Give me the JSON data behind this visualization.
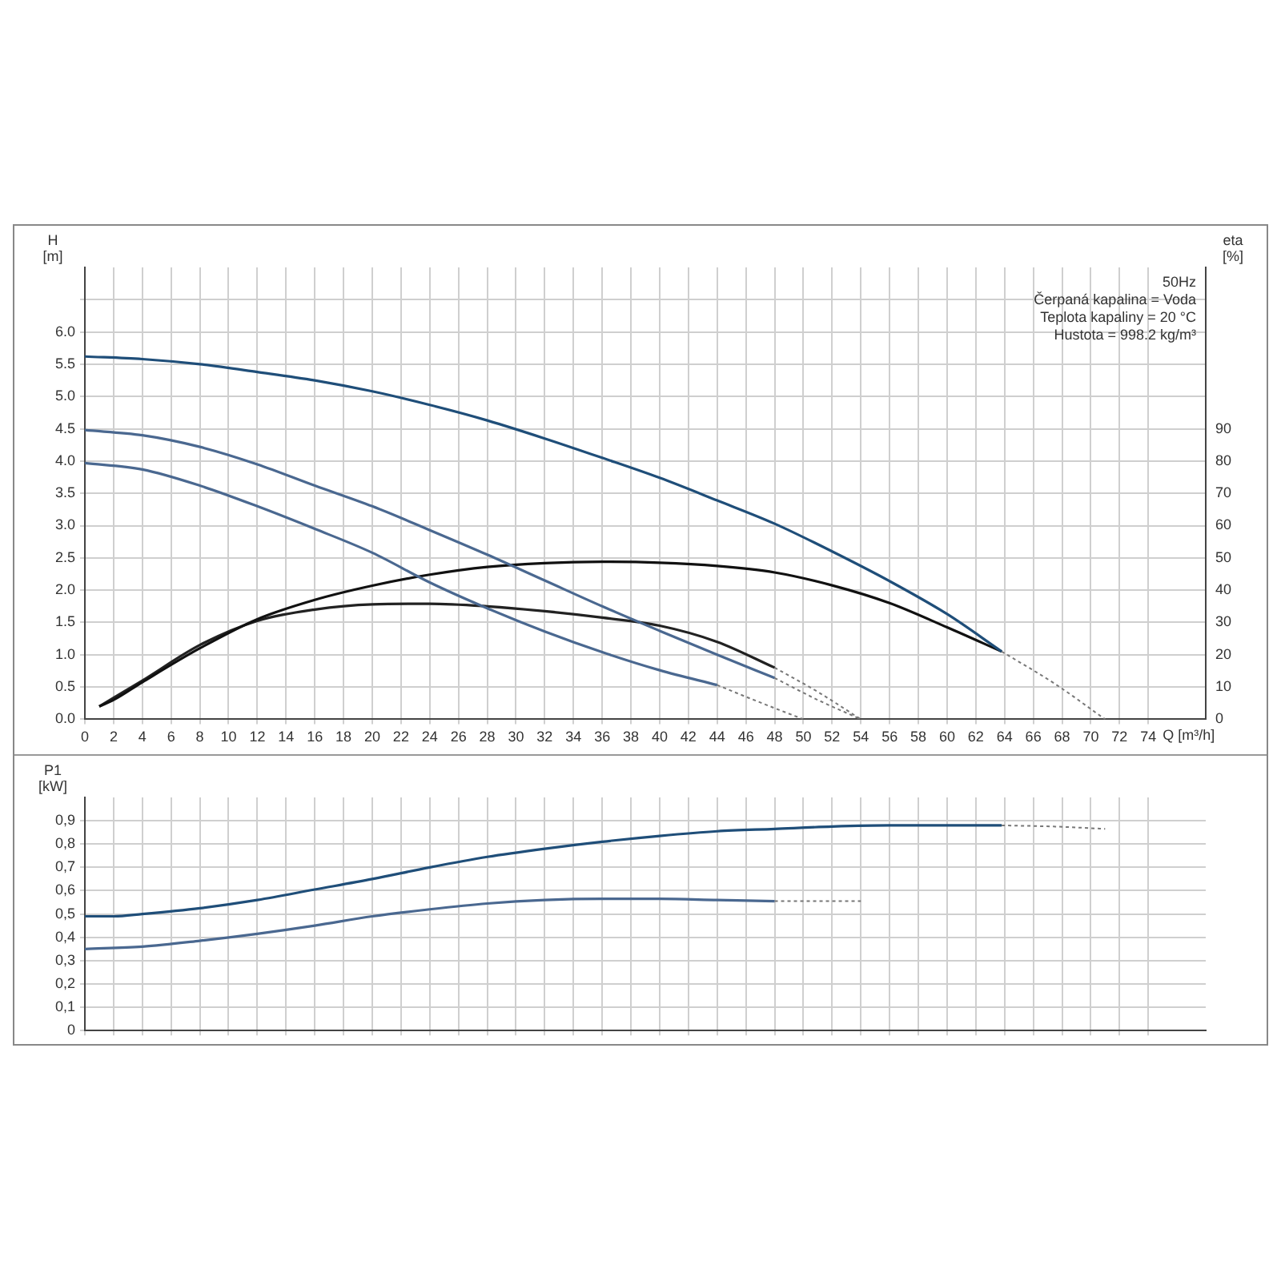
{
  "chart_data": [
    {
      "type": "line",
      "xlabel": "Q [m³/h]",
      "ylabel": "H [m]",
      "y2label": "eta [%]",
      "annotations": [
        "50Hz",
        "Čerpaná kapalina = Voda",
        "Teplota kapaliny = 20 °C",
        "Hustota = 998.2 kg/m³"
      ],
      "grid": true,
      "marker": "none",
      "xlim": [
        0,
        78
      ],
      "xticks": [
        0,
        2,
        4,
        6,
        8,
        10,
        12,
        14,
        16,
        18,
        20,
        22,
        24,
        26,
        28,
        30,
        32,
        34,
        36,
        38,
        40,
        42,
        44,
        46,
        48,
        50,
        52,
        54,
        56,
        58,
        60,
        62,
        64,
        66,
        68,
        70,
        72,
        74
      ],
      "ylim": [
        0,
        7
      ],
      "yticks": [
        {
          "value": 0,
          "label": "0.0"
        },
        {
          "value": 0.5,
          "label": "0.5"
        },
        {
          "value": 1,
          "label": "1.0"
        },
        {
          "value": 1.5,
          "label": "1.5"
        },
        {
          "value": 2,
          "label": "2.0"
        },
        {
          "value": 2.5,
          "label": "2.5"
        },
        {
          "value": 3,
          "label": "3.0"
        },
        {
          "value": 3.5,
          "label": "3.5"
        },
        {
          "value": 4,
          "label": "4.0"
        },
        {
          "value": 4.5,
          "label": "4.5"
        },
        {
          "value": 5,
          "label": "5.0"
        },
        {
          "value": 5.5,
          "label": "5.5"
        },
        {
          "value": 6,
          "label": "6.0"
        },
        {
          "value": 6.5,
          "label": null
        }
      ],
      "y2lim": [
        0,
        140
      ],
      "y2ticks": [
        0,
        10,
        20,
        30,
        40,
        50,
        60,
        70,
        80,
        90
      ],
      "series": [
        {
          "color": "#1f4e79",
          "axis": "y",
          "line_style": "solid",
          "x": [
            0,
            4,
            8,
            12,
            16,
            20,
            24,
            28,
            32,
            36,
            40,
            44,
            48,
            52,
            56,
            60,
            63.8
          ],
          "values": [
            5.62,
            5.58,
            5.5,
            5.38,
            5.25,
            5.08,
            4.87,
            4.63,
            4.35,
            4.05,
            3.74,
            3.39,
            3.03,
            2.6,
            2.14,
            1.63,
            1.05
          ]
        },
        {
          "color": "#777777",
          "axis": "y",
          "line_style": "dotted",
          "x": [
            63.8,
            67.5,
            71
          ],
          "values": [
            1.05,
            0.55,
            0
          ]
        },
        {
          "color": "#4a6890",
          "axis": "y",
          "line_style": "solid",
          "x": [
            0,
            4,
            8,
            12,
            16,
            20,
            24,
            28,
            32,
            36,
            40,
            44,
            48
          ],
          "values": [
            4.48,
            4.4,
            4.22,
            3.95,
            3.62,
            3.3,
            2.93,
            2.55,
            2.15,
            1.75,
            1.37,
            1.0,
            0.64
          ]
        },
        {
          "color": "#777777",
          "axis": "y",
          "line_style": "dotted",
          "x": [
            48,
            51,
            54
          ],
          "values": [
            0.64,
            0.3,
            0
          ]
        },
        {
          "color": "#4a6890",
          "axis": "y",
          "line_style": "solid",
          "x": [
            0,
            4,
            8,
            12,
            16,
            20,
            24,
            28,
            32,
            36,
            40,
            44
          ],
          "values": [
            3.97,
            3.87,
            3.62,
            3.3,
            2.95,
            2.58,
            2.12,
            1.72,
            1.36,
            1.04,
            0.76,
            0.53
          ]
        },
        {
          "color": "#777777",
          "axis": "y",
          "line_style": "dotted",
          "x": [
            44,
            47,
            50
          ],
          "values": [
            0.53,
            0.26,
            0
          ]
        },
        {
          "color": "#111111",
          "axis": "y2",
          "line_style": "solid",
          "x": [
            1,
            2,
            4,
            8,
            12,
            16,
            20,
            24,
            28,
            32,
            36,
            40,
            44,
            48,
            52,
            56,
            60,
            63.8
          ],
          "values": [
            4,
            6,
            11.5,
            22,
            31,
            37,
            41.4,
            44.8,
            47.2,
            48.4,
            48.8,
            48.5,
            47.5,
            45.5,
            41.5,
            36,
            28.5,
            21
          ]
        },
        {
          "color": "#222222",
          "axis": "y2",
          "line_style": "solid",
          "x": [
            1,
            4,
            8,
            12,
            16,
            20,
            24,
            28,
            32,
            36,
            40,
            44,
            48
          ],
          "values": [
            4,
            12,
            23,
            30.5,
            34,
            35.6,
            35.8,
            35,
            33.5,
            31.5,
            29,
            24,
            16
          ]
        },
        {
          "color": "#777777",
          "axis": "y2",
          "line_style": "dotted",
          "x": [
            48,
            51,
            54
          ],
          "values": [
            16,
            8.5,
            0
          ]
        }
      ]
    },
    {
      "type": "line",
      "ylabel": "P1 [kW]",
      "grid": true,
      "marker": "none",
      "tick_labels": "y",
      "xlim": [
        0,
        78
      ],
      "xticks": [
        0,
        2,
        4,
        6,
        8,
        10,
        12,
        14,
        16,
        18,
        20,
        22,
        24,
        26,
        28,
        30,
        32,
        34,
        36,
        38,
        40,
        42,
        44,
        46,
        48,
        50,
        52,
        54,
        56,
        58,
        60,
        62,
        64,
        66,
        68,
        70,
        72,
        74
      ],
      "ylim": [
        0,
        1
      ],
      "yticks": [
        0,
        {
          "value": 0.1,
          "label": "0,1"
        },
        {
          "value": 0.2,
          "label": "0,2"
        },
        {
          "value": 0.3,
          "label": "0,3"
        },
        {
          "value": 0.4,
          "label": "0,4"
        },
        {
          "value": 0.5,
          "label": "0,5"
        },
        {
          "value": 0.6,
          "label": "0,6"
        },
        {
          "value": 0.7,
          "label": "0,7"
        },
        {
          "value": 0.8,
          "label": "0,8"
        },
        {
          "value": 0.9,
          "label": "0,9"
        }
      ],
      "series": [
        {
          "color": "#1f4e79",
          "line_style": "solid",
          "x": [
            0,
            2,
            4,
            8,
            12,
            16,
            20,
            24,
            28,
            32,
            36,
            40,
            44,
            48,
            52,
            56,
            60,
            63.8
          ],
          "values": [
            0.49,
            0.49,
            0.5,
            0.525,
            0.56,
            0.605,
            0.65,
            0.7,
            0.745,
            0.78,
            0.81,
            0.835,
            0.855,
            0.865,
            0.875,
            0.88,
            0.88,
            0.88
          ]
        },
        {
          "color": "#777777",
          "line_style": "dotted",
          "x": [
            63.8,
            67.5,
            71
          ],
          "values": [
            0.88,
            0.875,
            0.865
          ]
        },
        {
          "color": "#4a6890",
          "line_style": "solid",
          "x": [
            0,
            4,
            8,
            12,
            16,
            20,
            24,
            28,
            32,
            36,
            40,
            44,
            48
          ],
          "values": [
            0.35,
            0.36,
            0.385,
            0.415,
            0.45,
            0.49,
            0.52,
            0.545,
            0.56,
            0.565,
            0.565,
            0.56,
            0.555
          ]
        },
        {
          "color": "#777777",
          "line_style": "dotted",
          "x": [
            48,
            51,
            54
          ],
          "values": [
            0.555,
            0.555,
            0.555
          ]
        }
      ]
    }
  ]
}
